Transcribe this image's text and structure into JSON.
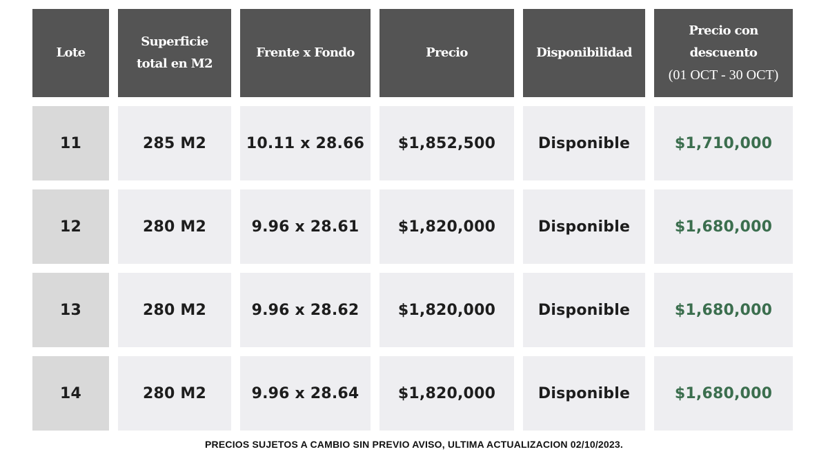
{
  "table": {
    "headers": [
      {
        "lines": [
          "Lote"
        ],
        "sub": ""
      },
      {
        "lines": [
          "Superficie",
          "total en M2"
        ],
        "sub": ""
      },
      {
        "lines": [
          "Frente x Fondo"
        ],
        "sub": ""
      },
      {
        "lines": [
          "Precio"
        ],
        "sub": ""
      },
      {
        "lines": [
          "Disponibilidad"
        ],
        "sub": ""
      },
      {
        "lines": [
          "Precio con",
          "descuento"
        ],
        "sub": "(01 OCT - 30 OCT)"
      }
    ],
    "rows": [
      {
        "lote": "11",
        "superficie": "285 M2",
        "frente_fondo": "10.11 x 28.66",
        "precio": "$1,852,500",
        "disponibilidad": "Disponible",
        "precio_descuento": "$1,710,000"
      },
      {
        "lote": "12",
        "superficie": "280 M2",
        "frente_fondo": "9.96 x 28.61",
        "precio": "$1,820,000",
        "disponibilidad": "Disponible",
        "precio_descuento": "$1,680,000"
      },
      {
        "lote": "13",
        "superficie": "280 M2",
        "frente_fondo": "9.96 x 28.62",
        "precio": "$1,820,000",
        "disponibilidad": "Disponible",
        "precio_descuento": "$1,680,000"
      },
      {
        "lote": "14",
        "superficie": "280 M2",
        "frente_fondo": "9.96 x 28.64",
        "precio": "$1,820,000",
        "disponibilidad": "Disponible",
        "precio_descuento": "$1,680,000"
      }
    ]
  },
  "footnote": "PRECIOS SUJETOS A CAMBIO SIN PREVIO AVISO, ULTIMA ACTUALIZACION 02/10/2023.",
  "colors": {
    "header_bg": "#545454",
    "cell_bg": "#eeeef1",
    "lote_bg": "#d9d9d9",
    "discount_text": "#3b6e4e"
  }
}
